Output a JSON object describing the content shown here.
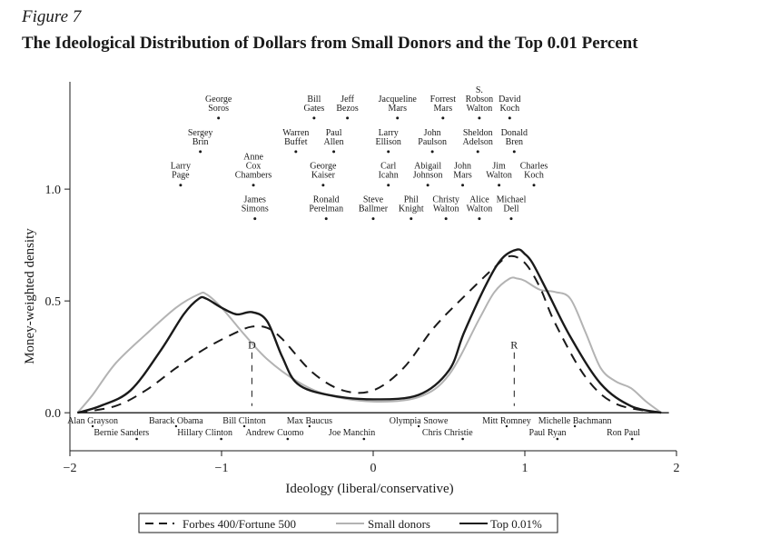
{
  "figure_label": "Figure 7",
  "title": "The Ideological Distribution of Dollars from Small Donors and the Top 0.01 Percent",
  "chart_data": {
    "type": "line",
    "xlabel": "Ideology (liberal/conservative)",
    "ylabel": "Money-weighted density",
    "xlim": [
      -2,
      2
    ],
    "ylim": [
      -0.17,
      1.48
    ],
    "xticks": [
      -2,
      -1,
      0,
      1,
      2
    ],
    "xtick_labels": [
      "−2",
      "−1",
      "0",
      "1",
      "2"
    ],
    "yticks": [
      0.0,
      0.5,
      1.0
    ],
    "ytick_labels": [
      "0.0",
      "0.5",
      "1.0"
    ],
    "legend_position": "bottom",
    "series": [
      {
        "name": "Forbes 400/Fortune 500",
        "style": "dashed",
        "color": "#1a1a1a",
        "x": [
          -1.95,
          -1.7,
          -1.5,
          -1.3,
          -1.1,
          -0.9,
          -0.8,
          -0.7,
          -0.6,
          -0.4,
          -0.2,
          0,
          0.2,
          0.4,
          0.6,
          0.8,
          0.9,
          1.0,
          1.1,
          1.2,
          1.4,
          1.6,
          1.9
        ],
        "y": [
          0.0,
          0.03,
          0.1,
          0.2,
          0.29,
          0.36,
          0.385,
          0.38,
          0.33,
          0.18,
          0.1,
          0.1,
          0.2,
          0.38,
          0.52,
          0.65,
          0.7,
          0.67,
          0.56,
          0.4,
          0.16,
          0.04,
          0.0
        ]
      },
      {
        "name": "Small donors",
        "style": "solid",
        "color": "#b3b3b3",
        "x": [
          -1.95,
          -1.85,
          -1.7,
          -1.5,
          -1.3,
          -1.15,
          -1.1,
          -1.0,
          -0.85,
          -0.7,
          -0.5,
          -0.3,
          0,
          0.3,
          0.5,
          0.7,
          0.8,
          0.9,
          0.95,
          1.0,
          1.1,
          1.2,
          1.3,
          1.4,
          1.5,
          1.6,
          1.7,
          1.8,
          1.9
        ],
        "y": [
          0.0,
          0.08,
          0.22,
          0.35,
          0.47,
          0.53,
          0.53,
          0.47,
          0.35,
          0.24,
          0.14,
          0.08,
          0.05,
          0.07,
          0.17,
          0.42,
          0.54,
          0.6,
          0.6,
          0.59,
          0.55,
          0.54,
          0.51,
          0.36,
          0.2,
          0.14,
          0.11,
          0.05,
          0.0
        ]
      },
      {
        "name": "Top 0.01%",
        "style": "solid",
        "color": "#1a1a1a",
        "x": [
          -1.95,
          -1.8,
          -1.6,
          -1.4,
          -1.25,
          -1.15,
          -1.1,
          -1.0,
          -0.9,
          -0.8,
          -0.7,
          -0.6,
          -0.5,
          -0.3,
          0,
          0.3,
          0.5,
          0.6,
          0.75,
          0.85,
          0.95,
          1.0,
          1.05,
          1.15,
          1.3,
          1.5,
          1.7,
          1.9
        ],
        "y": [
          0.0,
          0.03,
          0.1,
          0.28,
          0.44,
          0.51,
          0.51,
          0.47,
          0.44,
          0.45,
          0.41,
          0.25,
          0.13,
          0.08,
          0.06,
          0.08,
          0.19,
          0.36,
          0.58,
          0.69,
          0.73,
          0.71,
          0.67,
          0.54,
          0.34,
          0.13,
          0.03,
          0.0
        ]
      }
    ],
    "markers": [
      {
        "label": "D",
        "x": -0.8
      },
      {
        "label": "R",
        "x": 0.93
      }
    ],
    "politicians": [
      {
        "name": "Alan Grayson",
        "x": -1.85,
        "row": 1
      },
      {
        "name": "Barack Obama",
        "x": -1.3,
        "row": 1
      },
      {
        "name": "Bill Clinton",
        "x": -0.85,
        "row": 1
      },
      {
        "name": "Max Baucus",
        "x": -0.42,
        "row": 1
      },
      {
        "name": "Olympia Snowe",
        "x": 0.3,
        "row": 1
      },
      {
        "name": "Mitt Romney",
        "x": 0.88,
        "row": 1
      },
      {
        "name": "Michelle Bachmann",
        "x": 1.33,
        "row": 1
      },
      {
        "name": "Bernie Sanders",
        "x": -1.66,
        "row": 2
      },
      {
        "name": "Hillary Clinton",
        "x": -1.11,
        "row": 2
      },
      {
        "name": "Andrew Cuomo",
        "x": -0.65,
        "row": 2
      },
      {
        "name": "Joe Manchin",
        "x": -0.14,
        "row": 2
      },
      {
        "name": "Chris Christie",
        "x": 0.49,
        "row": 2
      },
      {
        "name": "Paul Ryan",
        "x": 1.15,
        "row": 2
      },
      {
        "name": "Ron Paul",
        "x": 1.65,
        "row": 2
      }
    ],
    "donors": [
      {
        "lines": [
          "George",
          "Soros"
        ],
        "x": -1.02,
        "y": 1.33
      },
      {
        "lines": [
          "Bill",
          "Gates"
        ],
        "x": -0.39,
        "y": 1.33
      },
      {
        "lines": [
          "Jeff",
          "Bezos"
        ],
        "x": -0.17,
        "y": 1.33
      },
      {
        "lines": [
          "Jacqueline",
          "Mars"
        ],
        "x": 0.16,
        "y": 1.33
      },
      {
        "lines": [
          "Forrest",
          "Mars"
        ],
        "x": 0.46,
        "y": 1.33
      },
      {
        "lines": [
          "S.",
          "Robson",
          "Walton"
        ],
        "x": 0.7,
        "y": 1.33
      },
      {
        "lines": [
          "David",
          "Koch"
        ],
        "x": 0.9,
        "y": 1.33
      },
      {
        "lines": [
          "Sergey",
          "Brin"
        ],
        "x": -1.14,
        "y": 1.18
      },
      {
        "lines": [
          "Warren",
          "Buffet"
        ],
        "x": -0.51,
        "y": 1.18
      },
      {
        "lines": [
          "Paul",
          "Allen"
        ],
        "x": -0.26,
        "y": 1.18
      },
      {
        "lines": [
          "Larry",
          "Ellison"
        ],
        "x": 0.1,
        "y": 1.18
      },
      {
        "lines": [
          "John",
          "Paulson"
        ],
        "x": 0.39,
        "y": 1.18
      },
      {
        "lines": [
          "Sheldon",
          "Adelson"
        ],
        "x": 0.69,
        "y": 1.18
      },
      {
        "lines": [
          "Donald",
          "Bren"
        ],
        "x": 0.93,
        "y": 1.18
      },
      {
        "lines": [
          "Larry",
          "Page"
        ],
        "x": -1.27,
        "y": 1.03
      },
      {
        "lines": [
          "Anne",
          "Cox",
          "Chambers"
        ],
        "x": -0.79,
        "y": 1.03
      },
      {
        "lines": [
          "George",
          "Kaiser"
        ],
        "x": -0.33,
        "y": 1.03
      },
      {
        "lines": [
          "Carl",
          "Icahn"
        ],
        "x": 0.1,
        "y": 1.03
      },
      {
        "lines": [
          "Abigail",
          "Johnson"
        ],
        "x": 0.36,
        "y": 1.03
      },
      {
        "lines": [
          "John",
          "Mars"
        ],
        "x": 0.59,
        "y": 1.03
      },
      {
        "lines": [
          "Jim",
          "Walton"
        ],
        "x": 0.83,
        "y": 1.03
      },
      {
        "lines": [
          "Charles",
          "Koch"
        ],
        "x": 1.06,
        "y": 1.03
      },
      {
        "lines": [
          "James",
          "Simons"
        ],
        "x": -0.78,
        "y": 0.88
      },
      {
        "lines": [
          "Ronald",
          "Perelman"
        ],
        "x": -0.31,
        "y": 0.88
      },
      {
        "lines": [
          "Steve",
          "Ballmer"
        ],
        "x": 0.0,
        "y": 0.88
      },
      {
        "lines": [
          "Phil",
          "Knight"
        ],
        "x": 0.25,
        "y": 0.88
      },
      {
        "lines": [
          "Christy",
          "Walton"
        ],
        "x": 0.48,
        "y": 0.88
      },
      {
        "lines": [
          "Alice",
          "Walton"
        ],
        "x": 0.7,
        "y": 0.88
      },
      {
        "lines": [
          "Michael",
          "Dell"
        ],
        "x": 0.91,
        "y": 0.88
      }
    ]
  }
}
